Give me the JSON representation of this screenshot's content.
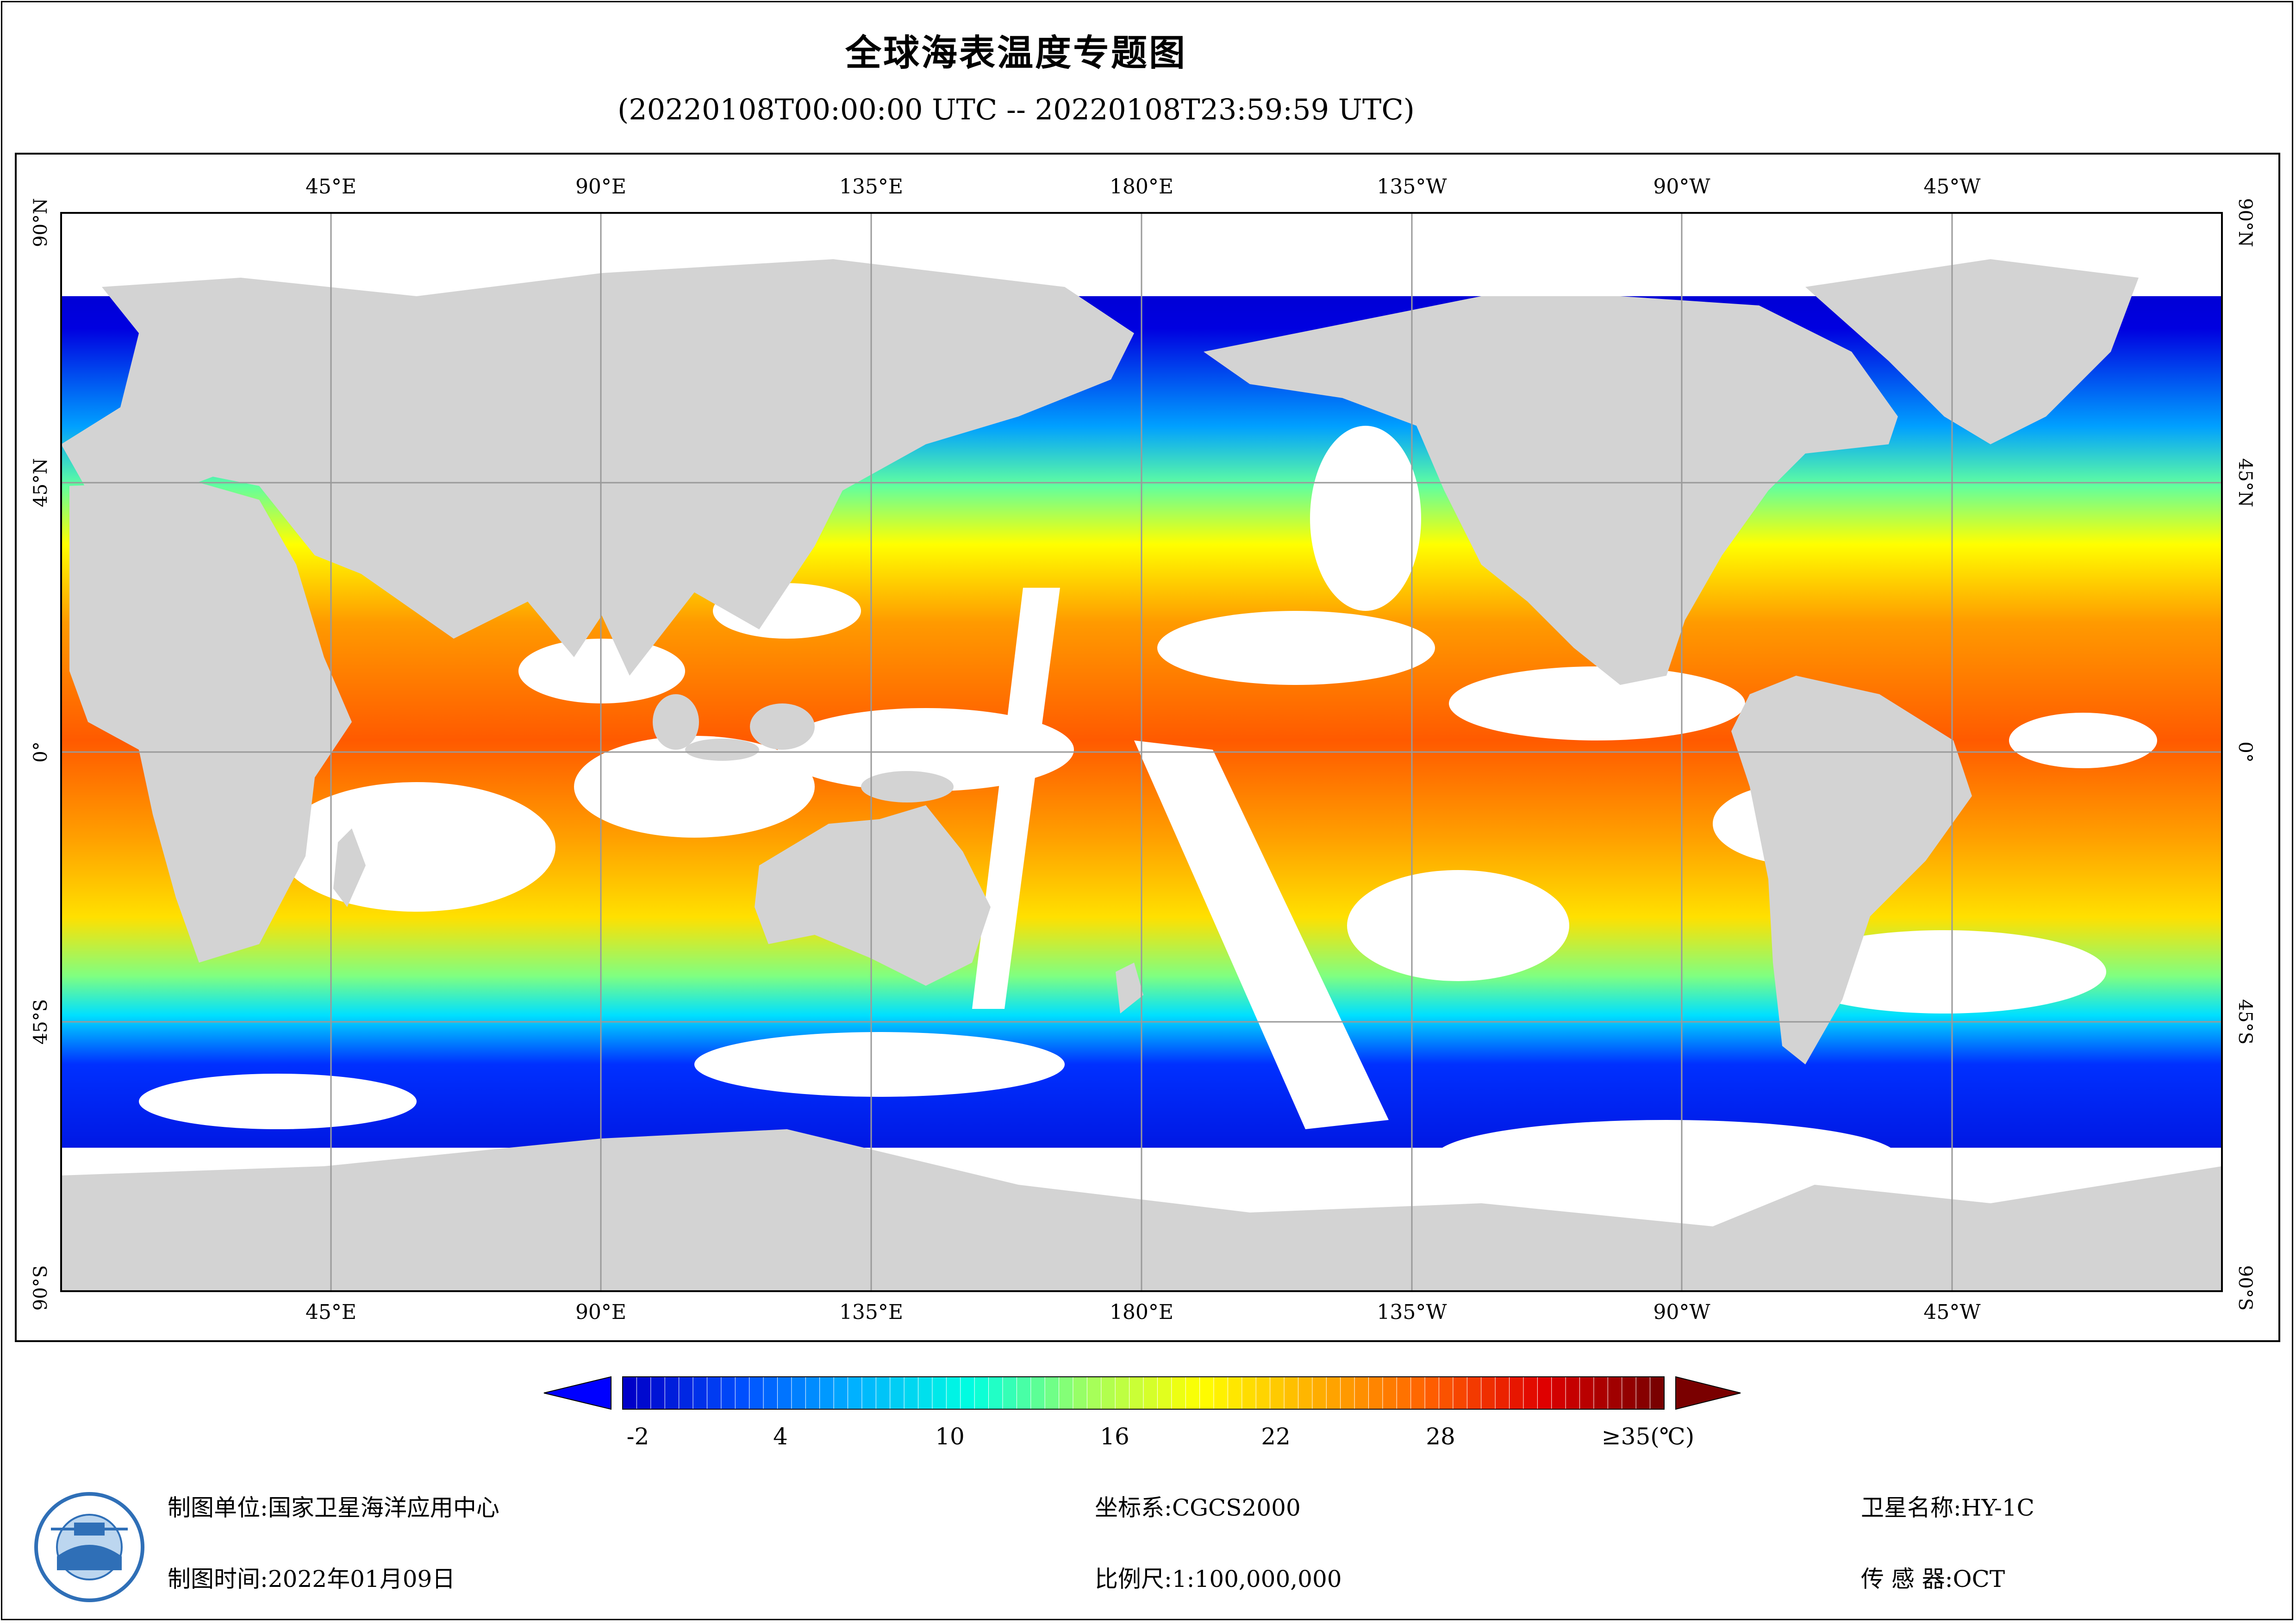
{
  "title": "全球海表温度专题图",
  "subtitle": "(20220108T00:00:00 UTC -- 20220108T23:59:59 UTC)",
  "map": {
    "lon_labels": [
      "45°E",
      "90°E",
      "135°E",
      "180°E",
      "135°W",
      "90°W",
      "45°W"
    ],
    "lat_labels": [
      "90°N",
      "45°N",
      "0°",
      "45°S",
      "90°S"
    ],
    "colors": {
      "land": "#d3d3d3",
      "cloud": "#ffffff",
      "grid": "#9a9a9a"
    }
  },
  "legend": {
    "ticks": [
      "-2",
      "4",
      "10",
      "16",
      "22",
      "28",
      "≥35(℃)"
    ],
    "min": -2,
    "max": 35,
    "stops": [
      "#0000c8",
      "#0050ff",
      "#00b4ff",
      "#00ffe0",
      "#a0ff60",
      "#ffff00",
      "#ffb000",
      "#ff6000",
      "#e00000",
      "#7a0000"
    ]
  },
  "info": {
    "unit": "制图单位:国家卫星海洋应用中心",
    "time": "制图时间:2022年01月09日",
    "crs": "坐标系:CGCS2000",
    "scale": "比例尺:1:100,000,000",
    "satellite": "卫星名称:HY-1C",
    "sensor": "传 感 器:OCT"
  },
  "logo": {
    "name": "national-satellite-ocean-application-service-logo"
  }
}
